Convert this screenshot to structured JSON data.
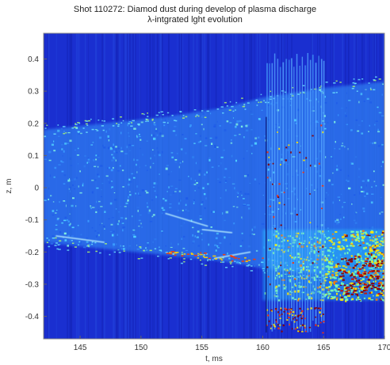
{
  "chart_data": {
    "type": "heatmap",
    "title": "Shot 110272: Diamod dust during develop of plasma discharge",
    "subtitle": "λ-intgrated lght evolution",
    "xlabel": "t, ms",
    "ylabel": "z, m",
    "xlim": [
      142,
      170
    ],
    "ylim": [
      -0.47,
      0.48
    ],
    "xticks": [
      145,
      150,
      155,
      160,
      165,
      170
    ],
    "yticks": [
      0.4,
      0.3,
      0.2,
      0.1,
      0,
      -0.1,
      -0.2,
      -0.3,
      -0.4
    ],
    "colormap": "jet",
    "colors": {
      "background": "#1a2fd0",
      "band": "#2f7df0",
      "hot": "#ffe600",
      "max": "#8b0000"
    },
    "plasma_band": {
      "t": [
        142,
        147,
        152,
        157,
        160,
        165,
        170
      ],
      "z_top": [
        0.18,
        0.2,
        0.22,
        0.25,
        0.28,
        0.31,
        0.33
      ],
      "z_bottom": [
        -0.17,
        -0.19,
        -0.21,
        -0.23,
        -0.25,
        -0.27,
        -0.28
      ]
    },
    "fringe_region": {
      "t": [
        160.3,
        165
      ],
      "z": [
        -0.45,
        0.42
      ]
    },
    "hot_region": {
      "t": [
        160,
        170
      ],
      "z": [
        -0.35,
        -0.13
      ]
    },
    "streaks": [
      {
        "t": [
          152.0,
          155.5
        ],
        "z": [
          -0.08,
          -0.12
        ]
      },
      {
        "t": [
          156.0,
          159.0
        ],
        "z": [
          -0.22,
          -0.2
        ]
      },
      {
        "t": [
          143.0,
          147.0
        ],
        "z": [
          -0.15,
          -0.17
        ]
      },
      {
        "t": [
          155.0,
          157.5
        ],
        "z": [
          -0.13,
          -0.14
        ]
      }
    ]
  }
}
